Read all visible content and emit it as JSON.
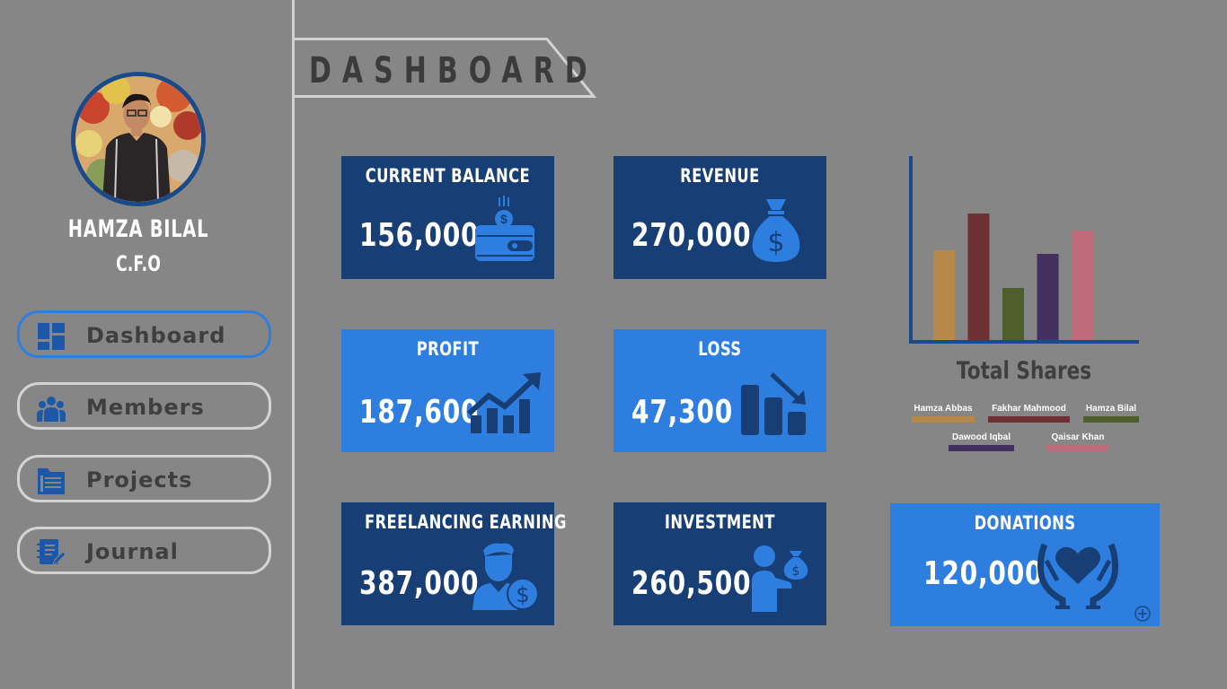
{
  "profile": {
    "name": "HAMZA BILAL",
    "role": "C.F.O"
  },
  "nav": {
    "items": [
      {
        "label": "Dashboard",
        "icon": "dashboard-icon",
        "active": true
      },
      {
        "label": "Members",
        "icon": "members-icon",
        "active": false
      },
      {
        "label": "Projects",
        "icon": "projects-icon",
        "active": false
      },
      {
        "label": "Journal",
        "icon": "journal-icon",
        "active": false
      }
    ]
  },
  "header": {
    "title": "DASHBOARD"
  },
  "cards": {
    "current_balance": {
      "title": "CURRENT BALANCE",
      "value": "156,000",
      "icon": "wallet-icon"
    },
    "revenue": {
      "title": "REVENUE",
      "value": "270,000",
      "icon": "money-bag-icon"
    },
    "profit": {
      "title": "PROFIT",
      "value": "187,600",
      "icon": "trend-up-icon"
    },
    "loss": {
      "title": "LOSS",
      "value": "47,300",
      "icon": "trend-down-icon"
    },
    "freelancing": {
      "title": "FREELANCING EARNING",
      "value": "387,000",
      "icon": "freelancer-icon"
    },
    "investment": {
      "title": "INVESTMENT",
      "value": "260,500",
      "icon": "investment-icon"
    },
    "donations": {
      "title": "DONATIONS",
      "value": "120,000",
      "icon": "donation-icon"
    }
  },
  "colors": {
    "card_dark": "#173f75",
    "card_light": "#2e7ee0",
    "background": "#878687",
    "axis": "#1a4a8a"
  },
  "chart_data": {
    "type": "bar",
    "title": "Total Shares",
    "categories": [
      "Hamza Abbas",
      "Fakhar Mahmood",
      "Hamza Bilal",
      "Dawood Iqbal",
      "Qaisar Khan"
    ],
    "values": [
      100,
      141,
      58,
      96,
      122
    ],
    "colors": [
      "#b5894a",
      "#6e3133",
      "#4f5e2d",
      "#42305f",
      "#c06b79"
    ],
    "ylim": [
      0,
      200
    ],
    "grid": false,
    "legend_position": "bottom"
  }
}
